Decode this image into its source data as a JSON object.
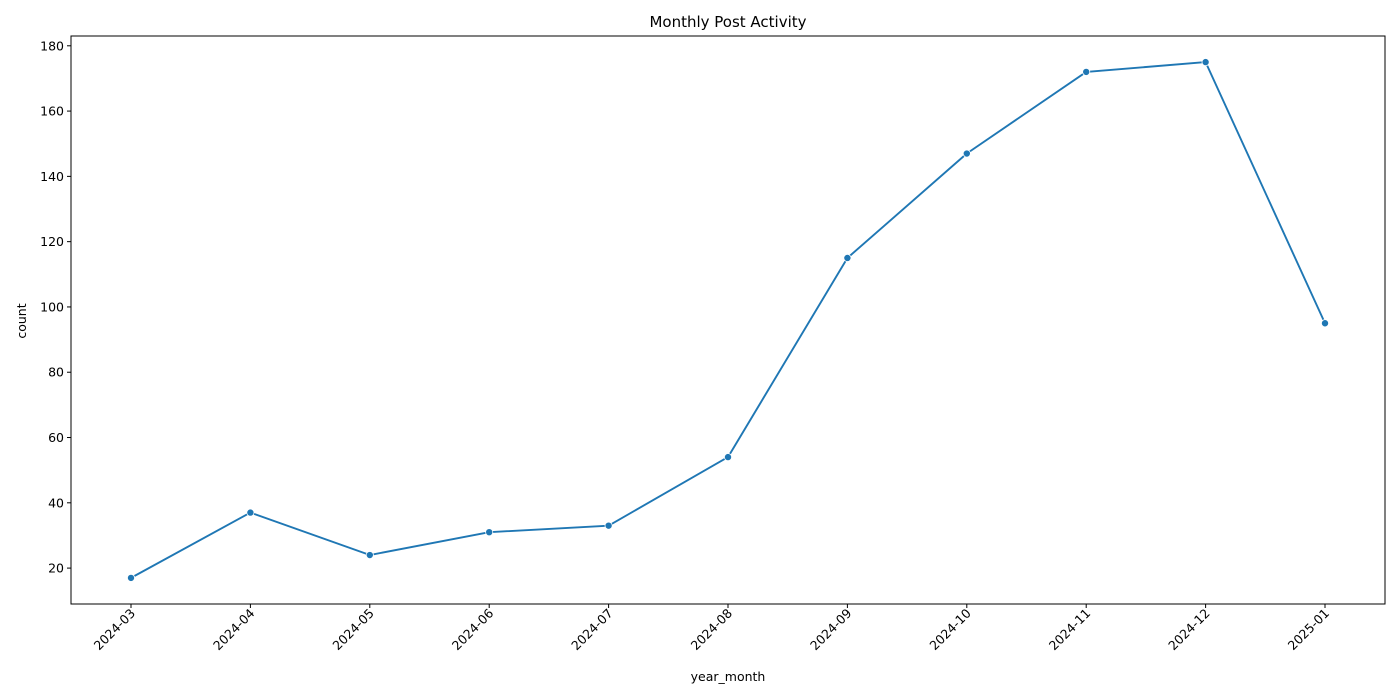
{
  "chart_data": {
    "type": "line",
    "title": "Monthly Post Activity",
    "xlabel": "year_month",
    "ylabel": "count",
    "categories": [
      "2024-03",
      "2024-04",
      "2024-05",
      "2024-06",
      "2024-07",
      "2024-08",
      "2024-09",
      "2024-10",
      "2024-11",
      "2024-12",
      "2025-01"
    ],
    "series": [
      {
        "values": [
          17,
          37,
          24,
          31,
          33,
          54,
          115,
          147,
          172,
          175,
          95
        ]
      }
    ],
    "ylim": [
      9,
      183
    ],
    "yticks": [
      20,
      40,
      60,
      80,
      100,
      120,
      140,
      160,
      180
    ],
    "grid": false,
    "legend": "none",
    "colors": {
      "line": "#1f77b4",
      "marker": "#1f77b4",
      "axes": "#000000",
      "background": "#ffffff"
    }
  }
}
